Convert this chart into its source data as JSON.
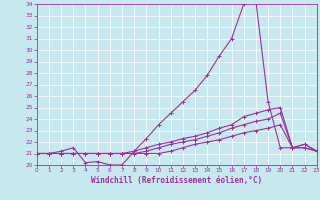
{
  "x": [
    0,
    1,
    2,
    3,
    4,
    5,
    6,
    7,
    8,
    9,
    10,
    11,
    12,
    13,
    14,
    15,
    16,
    17,
    18,
    19,
    20,
    21,
    22,
    23
  ],
  "line1": [
    21.0,
    21.0,
    21.2,
    21.5,
    20.2,
    20.3,
    20.0,
    20.0,
    21.2,
    22.3,
    23.5,
    24.5,
    25.5,
    26.5,
    27.8,
    29.5,
    31.0,
    34.0,
    34.2,
    25.5,
    21.5,
    21.5,
    21.8,
    21.2
  ],
  "line2": [
    21.0,
    21.0,
    21.0,
    21.0,
    21.0,
    21.0,
    21.0,
    21.0,
    21.2,
    21.5,
    21.8,
    22.0,
    22.3,
    22.5,
    22.8,
    23.2,
    23.5,
    24.2,
    24.5,
    24.8,
    25.0,
    21.5,
    21.8,
    21.2
  ],
  "line3": [
    21.0,
    21.0,
    21.0,
    21.0,
    21.0,
    21.0,
    21.0,
    21.0,
    21.0,
    21.2,
    21.5,
    21.8,
    22.0,
    22.2,
    22.5,
    22.8,
    23.2,
    23.5,
    23.8,
    24.0,
    24.5,
    21.5,
    21.5,
    21.2
  ],
  "line4": [
    21.0,
    21.0,
    21.0,
    21.0,
    21.0,
    21.0,
    21.0,
    21.0,
    21.0,
    21.0,
    21.0,
    21.2,
    21.5,
    21.8,
    22.0,
    22.2,
    22.5,
    22.8,
    23.0,
    23.2,
    23.5,
    21.5,
    21.5,
    21.2
  ],
  "xlim": [
    0,
    23
  ],
  "ylim": [
    20,
    34
  ],
  "xticks": [
    0,
    1,
    2,
    3,
    4,
    5,
    6,
    7,
    8,
    9,
    10,
    11,
    12,
    13,
    14,
    15,
    16,
    17,
    18,
    19,
    20,
    21,
    22,
    23
  ],
  "yticks": [
    20,
    21,
    22,
    23,
    24,
    25,
    26,
    27,
    28,
    29,
    30,
    31,
    32,
    33,
    34
  ],
  "xlabel": "Windchill (Refroidissement éolien,°C)",
  "line_color": "#993399",
  "bg_color": "#c8e8f0",
  "plot_bg": "#c8e8f0",
  "grid_color": "#ffffff",
  "marker": "+",
  "markersize": 3,
  "linewidth": 0.8,
  "xlabel_fontsize": 5.5,
  "tick_fontsize": 4.2
}
